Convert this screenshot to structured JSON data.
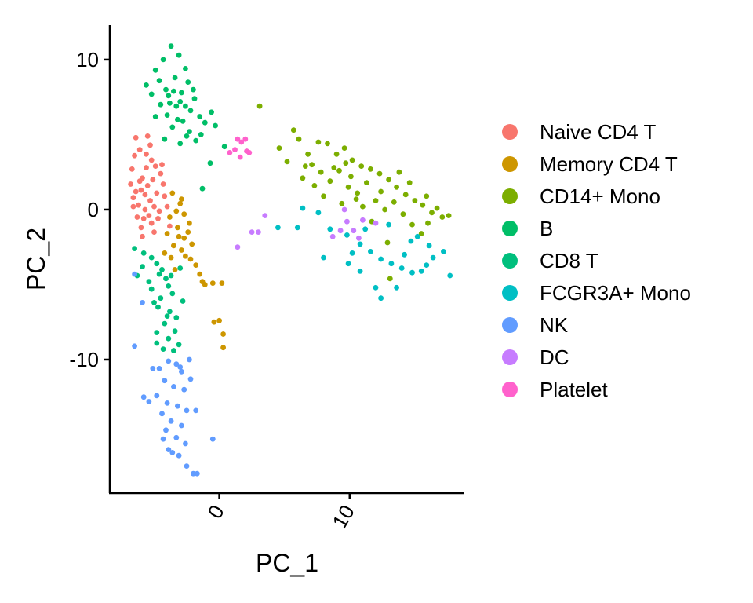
{
  "chart_data": {
    "type": "scatter",
    "title": "",
    "xlabel": "PC_1",
    "ylabel": "PC_2",
    "xlim": [
      -8.4,
      18.8
    ],
    "ylim": [
      -18.9,
      12.3
    ],
    "x_ticks": [
      0,
      10
    ],
    "y_ticks": [
      10,
      0,
      -10
    ],
    "x_tick_labels": [
      "0",
      "10"
    ],
    "y_tick_labels": [
      "10",
      "0",
      "-10"
    ],
    "x_tick_rotation": 60,
    "grid": false,
    "legend_position": "right",
    "series": [
      {
        "name": "Naive CD4 T",
        "color": "#F8766D",
        "points": [
          [
            -6.4,
            4.8
          ],
          [
            -5.5,
            4.9
          ],
          [
            -6.1,
            4.0
          ],
          [
            -6.7,
            2.7
          ],
          [
            -6.8,
            1.7
          ],
          [
            -6.6,
            0.8
          ],
          [
            -6.2,
            0.3
          ],
          [
            -5.8,
            -0.6
          ],
          [
            -5.2,
            -0.9
          ],
          [
            -4.6,
            -0.1
          ],
          [
            -4.2,
            0.9
          ],
          [
            -4.5,
            2.4
          ],
          [
            -5.2,
            3.3
          ],
          [
            -5.9,
            2.1
          ],
          [
            -6.0,
            1.3
          ],
          [
            -5.5,
            1.6
          ],
          [
            -5.1,
            2.0
          ],
          [
            -4.8,
            1.1
          ],
          [
            -5.3,
            0.6
          ],
          [
            -5.7,
            0.0
          ],
          [
            -6.3,
            -0.5
          ],
          [
            -4.9,
            2.9
          ],
          [
            -5.6,
            3.7
          ],
          [
            -6.0,
            -1.2
          ],
          [
            -5.0,
            -1.5
          ],
          [
            -4.0,
            0.2
          ],
          [
            -3.8,
            -1.1
          ],
          [
            -6.5,
            3.6
          ],
          [
            -4.4,
            3.0
          ],
          [
            -5.4,
            -0.4
          ],
          [
            -6.4,
            1.2
          ],
          [
            -5.0,
            0.2
          ],
          [
            -5.6,
            2.8
          ],
          [
            -4.7,
            -0.6
          ],
          [
            -5.9,
            -1.8
          ],
          [
            -6.1,
            1.9
          ],
          [
            -5.3,
            4.3
          ],
          [
            -4.3,
            1.7
          ],
          [
            -6.6,
            0.2
          ],
          [
            -5.7,
            1.0
          ]
        ]
      },
      {
        "name": "Memory CD4 T",
        "color": "#CD9600",
        "points": [
          [
            -3.6,
            1.1
          ],
          [
            -3.0,
            0.4
          ],
          [
            -2.7,
            -0.3
          ],
          [
            -2.4,
            -1.5
          ],
          [
            -3.1,
            -1.8
          ],
          [
            -3.5,
            -2.4
          ],
          [
            -4.0,
            -1.6
          ],
          [
            -3.8,
            -0.5
          ],
          [
            -2.9,
            -2.7
          ],
          [
            -2.3,
            -0.9
          ],
          [
            -3.3,
            -0.1
          ],
          [
            -4.2,
            -2.9
          ],
          [
            -2.6,
            -3.1
          ],
          [
            -2.2,
            -3.3
          ],
          [
            -1.8,
            -3.7
          ],
          [
            -1.5,
            -4.3
          ],
          [
            -1.3,
            -4.8
          ],
          [
            -1.1,
            -5.0
          ],
          [
            -0.5,
            -4.9
          ],
          [
            0.2,
            -4.9
          ],
          [
            -0.4,
            -7.5
          ],
          [
            0.0,
            -7.4
          ],
          [
            0.3,
            -8.3
          ],
          [
            0.3,
            -9.2
          ],
          [
            -3.2,
            -1.2
          ],
          [
            -2.9,
            0.7
          ],
          [
            -3.7,
            -3.2
          ],
          [
            -2.1,
            -2.3
          ],
          [
            -3.4,
            -4.0
          ],
          [
            -2.7,
            -1.9
          ]
        ]
      },
      {
        "name": "CD14+ Mono",
        "color": "#7CAE00",
        "points": [
          [
            3.1,
            6.9
          ],
          [
            4.6,
            4.1
          ],
          [
            5.7,
            5.3
          ],
          [
            6.1,
            4.7
          ],
          [
            6.8,
            3.7
          ],
          [
            7.6,
            4.5
          ],
          [
            8.3,
            4.4
          ],
          [
            9.0,
            3.7
          ],
          [
            9.6,
            4.1
          ],
          [
            10.2,
            3.3
          ],
          [
            10.9,
            2.9
          ],
          [
            11.6,
            2.7
          ],
          [
            12.3,
            2.4
          ],
          [
            13.0,
            2.0
          ],
          [
            13.6,
            1.5
          ],
          [
            14.3,
            1.0
          ],
          [
            15.0,
            0.6
          ],
          [
            15.6,
            0.3
          ],
          [
            16.3,
            -0.2
          ],
          [
            17.1,
            -0.5
          ],
          [
            6.4,
            2.1
          ],
          [
            7.1,
            3.0
          ],
          [
            7.8,
            2.5
          ],
          [
            8.5,
            1.9
          ],
          [
            9.2,
            2.6
          ],
          [
            9.9,
            1.5
          ],
          [
            10.6,
            1.1
          ],
          [
            11.3,
            1.8
          ],
          [
            12.0,
            0.6
          ],
          [
            12.7,
            0.0
          ],
          [
            13.4,
            0.5
          ],
          [
            14.1,
            -0.3
          ],
          [
            14.8,
            -1.0
          ],
          [
            15.5,
            -1.6
          ],
          [
            16.0,
            -0.9
          ],
          [
            16.7,
            0.1
          ],
          [
            11.7,
            -0.8
          ],
          [
            12.9,
            -2.2
          ],
          [
            13.1,
            -4.6
          ],
          [
            8.0,
            0.9
          ],
          [
            9.4,
            0.4
          ],
          [
            10.1,
            2.2
          ],
          [
            11.0,
            0.2
          ],
          [
            14.6,
            1.8
          ],
          [
            15.9,
            0.9
          ],
          [
            5.2,
            3.2
          ],
          [
            6.6,
            2.9
          ],
          [
            7.3,
            1.6
          ],
          [
            17.6,
            -0.4
          ],
          [
            12.4,
            1.2
          ],
          [
            13.8,
            2.5
          ],
          [
            9.7,
            3.1
          ],
          [
            8.8,
            2.8
          ],
          [
            10.5,
            0.7
          ]
        ]
      },
      {
        "name": "B",
        "color": "#00BE67",
        "points": [
          [
            -3.7,
            10.9
          ],
          [
            -3.1,
            10.3
          ],
          [
            -4.3,
            10.0
          ],
          [
            -4.9,
            9.3
          ],
          [
            -2.6,
            9.4
          ],
          [
            -4.6,
            8.6
          ],
          [
            -3.4,
            8.8
          ],
          [
            -2.4,
            8.5
          ],
          [
            -5.6,
            8.3
          ],
          [
            -5.2,
            7.7
          ],
          [
            -3.9,
            7.6
          ],
          [
            -2.9,
            7.8
          ],
          [
            -1.9,
            7.4
          ],
          [
            -4.5,
            7.0
          ],
          [
            -3.3,
            6.9
          ],
          [
            -2.2,
            6.6
          ],
          [
            -4.0,
            6.3
          ],
          [
            -2.8,
            5.9
          ],
          [
            -1.5,
            6.2
          ],
          [
            -3.6,
            5.5
          ],
          [
            -2.3,
            5.2
          ],
          [
            -1.1,
            5.8
          ],
          [
            -4.2,
            4.7
          ],
          [
            -3.0,
            4.4
          ],
          [
            -1.8,
            4.6
          ],
          [
            -0.3,
            5.6
          ],
          [
            0.4,
            4.2
          ],
          [
            -0.7,
            3.1
          ],
          [
            -1.3,
            1.4
          ],
          [
            -4.9,
            6.2
          ],
          [
            -3.0,
            7.2
          ],
          [
            -2.0,
            8.0
          ],
          [
            -3.8,
            7.1
          ],
          [
            -2.6,
            6.9
          ],
          [
            -3.5,
            7.9
          ],
          [
            -4.1,
            8.0
          ],
          [
            -1.4,
            5.0
          ],
          [
            -2.5,
            4.9
          ],
          [
            -0.6,
            6.5
          ],
          [
            -3.2,
            6.0
          ]
        ]
      },
      {
        "name": "CD8 T",
        "color": "#00BF7D",
        "points": [
          [
            -6.5,
            -2.6
          ],
          [
            -5.8,
            -2.9
          ],
          [
            -5.2,
            -3.2
          ],
          [
            -4.8,
            -3.6
          ],
          [
            -4.4,
            -4.0
          ],
          [
            -4.1,
            -4.6
          ],
          [
            -3.9,
            -5.1
          ],
          [
            -3.6,
            -5.6
          ],
          [
            -4.5,
            -5.9
          ],
          [
            -4.7,
            -6.5
          ],
          [
            -3.8,
            -6.8
          ],
          [
            -3.3,
            -7.2
          ],
          [
            -4.2,
            -7.6
          ],
          [
            -4.8,
            -8.2
          ],
          [
            -3.9,
            -8.6
          ],
          [
            -3.1,
            -9.0
          ],
          [
            -4.3,
            -9.3
          ],
          [
            -4.8,
            -8.9
          ],
          [
            -5.4,
            -4.8
          ],
          [
            -5.9,
            -3.8
          ],
          [
            -6.3,
            -4.4
          ],
          [
            -5.0,
            -6.2
          ],
          [
            -3.0,
            -3.9
          ],
          [
            -2.8,
            -6.1
          ],
          [
            -3.4,
            -8.1
          ],
          [
            -4.6,
            -4.3
          ],
          [
            -5.2,
            -5.3
          ],
          [
            -3.7,
            -4.4
          ],
          [
            -4.0,
            -7.1
          ],
          [
            -3.5,
            -9.4
          ]
        ]
      },
      {
        "name": "FCGR3A+ Mono",
        "color": "#00BFC4",
        "points": [
          [
            4.5,
            -1.2
          ],
          [
            6.0,
            -1.2
          ],
          [
            8.5,
            -1.3
          ],
          [
            9.8,
            -1.7
          ],
          [
            10.8,
            -2.3
          ],
          [
            11.6,
            -2.8
          ],
          [
            12.4,
            -3.3
          ],
          [
            13.2,
            -3.6
          ],
          [
            14.0,
            -3.9
          ],
          [
            14.8,
            -4.2
          ],
          [
            15.5,
            -4.1
          ],
          [
            16.4,
            -3.2
          ],
          [
            17.2,
            -2.8
          ],
          [
            17.7,
            -4.4
          ],
          [
            12.0,
            -5.2
          ],
          [
            10.8,
            -4.1
          ],
          [
            9.9,
            -3.6
          ],
          [
            8.0,
            -3.2
          ],
          [
            12.4,
            -5.9
          ],
          [
            13.6,
            -5.2
          ],
          [
            14.7,
            -2.1
          ],
          [
            15.2,
            -1.8
          ],
          [
            16.1,
            -2.4
          ],
          [
            11.2,
            -1.3
          ],
          [
            13.0,
            -1.0
          ],
          [
            14.2,
            -3.0
          ],
          [
            15.9,
            -3.7
          ],
          [
            10.2,
            -2.9
          ],
          [
            7.6,
            -0.2
          ],
          [
            6.4,
            0.1
          ]
        ]
      },
      {
        "name": "NK",
        "color": "#619CFF",
        "points": [
          [
            -4.6,
            -10.6
          ],
          [
            -3.9,
            -10.1
          ],
          [
            -3.3,
            -10.3
          ],
          [
            -2.9,
            -10.8
          ],
          [
            -4.2,
            -11.4
          ],
          [
            -3.5,
            -11.8
          ],
          [
            -2.7,
            -12.0
          ],
          [
            -4.8,
            -12.4
          ],
          [
            -4.0,
            -12.9
          ],
          [
            -3.2,
            -13.1
          ],
          [
            -2.5,
            -13.4
          ],
          [
            -4.4,
            -13.6
          ],
          [
            -3.7,
            -14.1
          ],
          [
            -2.9,
            -14.4
          ],
          [
            -4.1,
            -14.7
          ],
          [
            -3.3,
            -15.2
          ],
          [
            -2.6,
            -15.6
          ],
          [
            -3.9,
            -16.0
          ],
          [
            -3.1,
            -16.4
          ],
          [
            -2.5,
            -17.1
          ],
          [
            -2.0,
            -17.6
          ],
          [
            -1.7,
            -17.6
          ],
          [
            -5.8,
            -12.5
          ],
          [
            -5.4,
            -12.8
          ],
          [
            -2.2,
            -11.3
          ],
          [
            -1.8,
            -13.4
          ],
          [
            -0.5,
            -15.3
          ],
          [
            -6.5,
            -9.1
          ],
          [
            -5.1,
            -10.6
          ],
          [
            -3.0,
            -10.5
          ],
          [
            -2.3,
            -10.0
          ],
          [
            -4.3,
            -15.3
          ],
          [
            -3.6,
            -16.2
          ],
          [
            -5.9,
            -6.2
          ],
          [
            -6.5,
            -4.3
          ]
        ]
      },
      {
        "name": "DC",
        "color": "#C77CFF",
        "points": [
          [
            2.5,
            -1.5
          ],
          [
            3.5,
            -0.4
          ],
          [
            3.0,
            -1.5
          ],
          [
            1.4,
            -2.5
          ],
          [
            9.3,
            -1.4
          ],
          [
            9.8,
            -0.8
          ],
          [
            10.3,
            -1.4
          ],
          [
            8.7,
            -1.8
          ],
          [
            11.0,
            -0.7
          ],
          [
            12.0,
            -0.9
          ],
          [
            9.6,
            0.0
          ],
          [
            10.7,
            -1.9
          ]
        ]
      },
      {
        "name": "Platelet",
        "color": "#FF61CC",
        "points": [
          [
            1.4,
            4.7
          ],
          [
            1.7,
            4.5
          ],
          [
            2.0,
            4.7
          ],
          [
            1.2,
            4.0
          ],
          [
            2.1,
            3.9
          ],
          [
            1.6,
            3.5
          ],
          [
            0.8,
            3.8
          ],
          [
            2.3,
            3.8
          ]
        ]
      }
    ]
  }
}
